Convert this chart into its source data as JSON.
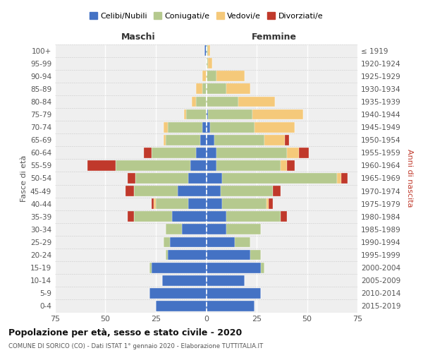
{
  "age_groups": [
    "0-4",
    "5-9",
    "10-14",
    "15-19",
    "20-24",
    "25-29",
    "30-34",
    "35-39",
    "40-44",
    "45-49",
    "50-54",
    "55-59",
    "60-64",
    "65-69",
    "70-74",
    "75-79",
    "80-84",
    "85-89",
    "90-94",
    "95-99",
    "100+"
  ],
  "birth_years": [
    "2015-2019",
    "2010-2014",
    "2005-2009",
    "2000-2004",
    "1995-1999",
    "1990-1994",
    "1985-1989",
    "1980-1984",
    "1975-1979",
    "1970-1974",
    "1965-1969",
    "1960-1964",
    "1955-1959",
    "1950-1954",
    "1945-1949",
    "1940-1944",
    "1935-1939",
    "1930-1934",
    "1925-1929",
    "1920-1924",
    "≤ 1919"
  ],
  "colors": {
    "celibi": "#4472C4",
    "coniugati": "#b5c98e",
    "vedovi": "#f5c97a",
    "divorziati": "#c0392b"
  },
  "male": {
    "celibi": [
      25,
      28,
      22,
      27,
      19,
      18,
      12,
      17,
      9,
      14,
      9,
      8,
      5,
      3,
      2,
      0,
      0,
      0,
      0,
      0,
      1
    ],
    "coniugati": [
      0,
      0,
      0,
      1,
      1,
      3,
      8,
      19,
      16,
      22,
      26,
      37,
      22,
      17,
      17,
      10,
      5,
      2,
      0,
      0,
      0
    ],
    "vedovi": [
      0,
      0,
      0,
      0,
      0,
      0,
      0,
      0,
      1,
      0,
      0,
      0,
      0,
      1,
      2,
      1,
      2,
      3,
      2,
      0,
      0
    ],
    "divorziati": [
      0,
      0,
      0,
      0,
      0,
      0,
      0,
      3,
      1,
      4,
      4,
      14,
      4,
      0,
      0,
      0,
      0,
      0,
      0,
      0,
      0
    ]
  },
  "female": {
    "nubili": [
      24,
      27,
      19,
      27,
      22,
      14,
      10,
      10,
      8,
      7,
      8,
      5,
      5,
      4,
      2,
      1,
      0,
      0,
      0,
      0,
      0
    ],
    "coniugati": [
      0,
      0,
      0,
      2,
      5,
      8,
      17,
      27,
      22,
      26,
      57,
      32,
      35,
      25,
      22,
      22,
      16,
      10,
      5,
      1,
      1
    ],
    "vedovi": [
      0,
      0,
      0,
      0,
      0,
      0,
      0,
      0,
      1,
      0,
      2,
      3,
      6,
      10,
      20,
      25,
      18,
      12,
      14,
      2,
      1
    ],
    "divorziati": [
      0,
      0,
      0,
      0,
      0,
      0,
      0,
      3,
      2,
      4,
      3,
      4,
      5,
      2,
      0,
      0,
      0,
      0,
      0,
      0,
      0
    ]
  },
  "xlim": [
    -75,
    75
  ],
  "xticks": [
    -75,
    -50,
    -25,
    0,
    25,
    50,
    75
  ],
  "xticklabels": [
    "75",
    "50",
    "25",
    "0",
    "25",
    "50",
    "75"
  ],
  "title": "Popolazione per età, sesso e stato civile - 2020",
  "subtitle": "COMUNE DI SORICO (CO) - Dati ISTAT 1° gennaio 2020 - Elaborazione TUTTITALIA.IT",
  "ylabel_left": "Fasce di età",
  "ylabel_right": "Anni di nascita",
  "label_maschi": "Maschi",
  "label_femmine": "Femmine",
  "legend_labels": [
    "Celibi/Nubili",
    "Coniugati/e",
    "Vedovi/e",
    "Divorziati/e"
  ],
  "background_color": "#efefef",
  "grid_color": "#d8d8d8"
}
